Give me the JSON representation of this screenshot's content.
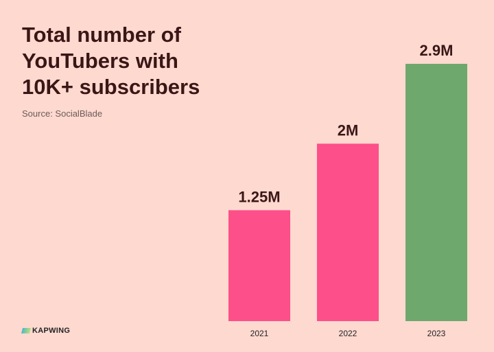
{
  "chart_data": {
    "type": "bar",
    "title": "Total number of\nYouTubers with\n10K+ subscribers",
    "subtitle": "Source: SocialBlade",
    "categories": [
      "2021",
      "2022",
      "2023"
    ],
    "values": [
      1.25,
      2,
      2.9
    ],
    "data_labels": [
      "1.25M",
      "2M",
      "2.9M"
    ],
    "unit": "M",
    "colors": [
      "#fd4f8a",
      "#fd4f8a",
      "#6fa86c"
    ],
    "ylim": [
      0,
      2.9
    ],
    "grid": false,
    "xlabel": "",
    "ylabel": ""
  },
  "brand": {
    "name": "KAPWING"
  },
  "colors": {
    "background": "#fdd9d0",
    "text": "#3b1616"
  }
}
